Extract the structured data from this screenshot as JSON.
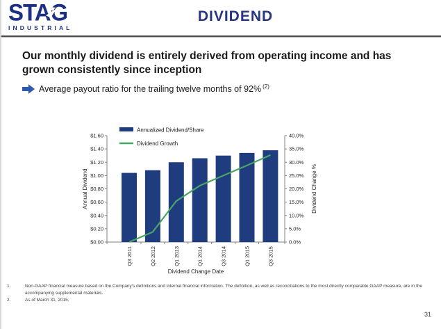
{
  "header": {
    "logo_name": "STAG",
    "logo_sub": "INDUSTRIAL",
    "title": "DIVIDEND"
  },
  "headline": {
    "lines": [
      "Our monthly dividend is entirely derived from operating income and has",
      "grown consistently since inception"
    ]
  },
  "bullet": {
    "text": "Average payout ratio for the trailing twelve months of 92%",
    "superscript": "(2)"
  },
  "chart_data": {
    "type": "bar",
    "categories": [
      "Q3 2011",
      "Q2 2012",
      "Q1 2013",
      "Q1 2014",
      "Q3 2014",
      "Q1 2015",
      "Q3 2015"
    ],
    "series": [
      {
        "name": "Annualized Dividend/Share",
        "type": "bar",
        "axis": "left",
        "values": [
          1.04,
          1.08,
          1.2,
          1.26,
          1.3,
          1.34,
          1.38
        ]
      },
      {
        "name": "Dividend Growth",
        "type": "line",
        "axis": "right",
        "values_pct": [
          0.0,
          3.8,
          15.4,
          21.2,
          25.0,
          28.8,
          32.7
        ]
      }
    ],
    "title": "",
    "xlabel": "Dividend Change Date",
    "ylabel_left": "Annual Dividend",
    "ylabel_right": "Dividend Change %",
    "ylim_left": [
      0,
      1.6
    ],
    "ytick_step_left": 0.2,
    "ylim_right": [
      0,
      40
    ],
    "ytick_step_right": 5,
    "grid": false,
    "legend_position": "top",
    "colors": {
      "bar": "#1F3D7E",
      "line": "#47A566",
      "axis": "#808080",
      "tick_text": "#262626"
    }
  },
  "footnotes": [
    {
      "number": "1.",
      "text": "Non-GAAP financial measure based on the Company's definitions and internal financial information.  The definition, as well as reconciliations to the most directly comparable GAAP measure, are in the accompanying supplemental materials."
    },
    {
      "number": "2.",
      "text": "As of March 31, 2015."
    }
  ],
  "page": {
    "number": "31"
  }
}
